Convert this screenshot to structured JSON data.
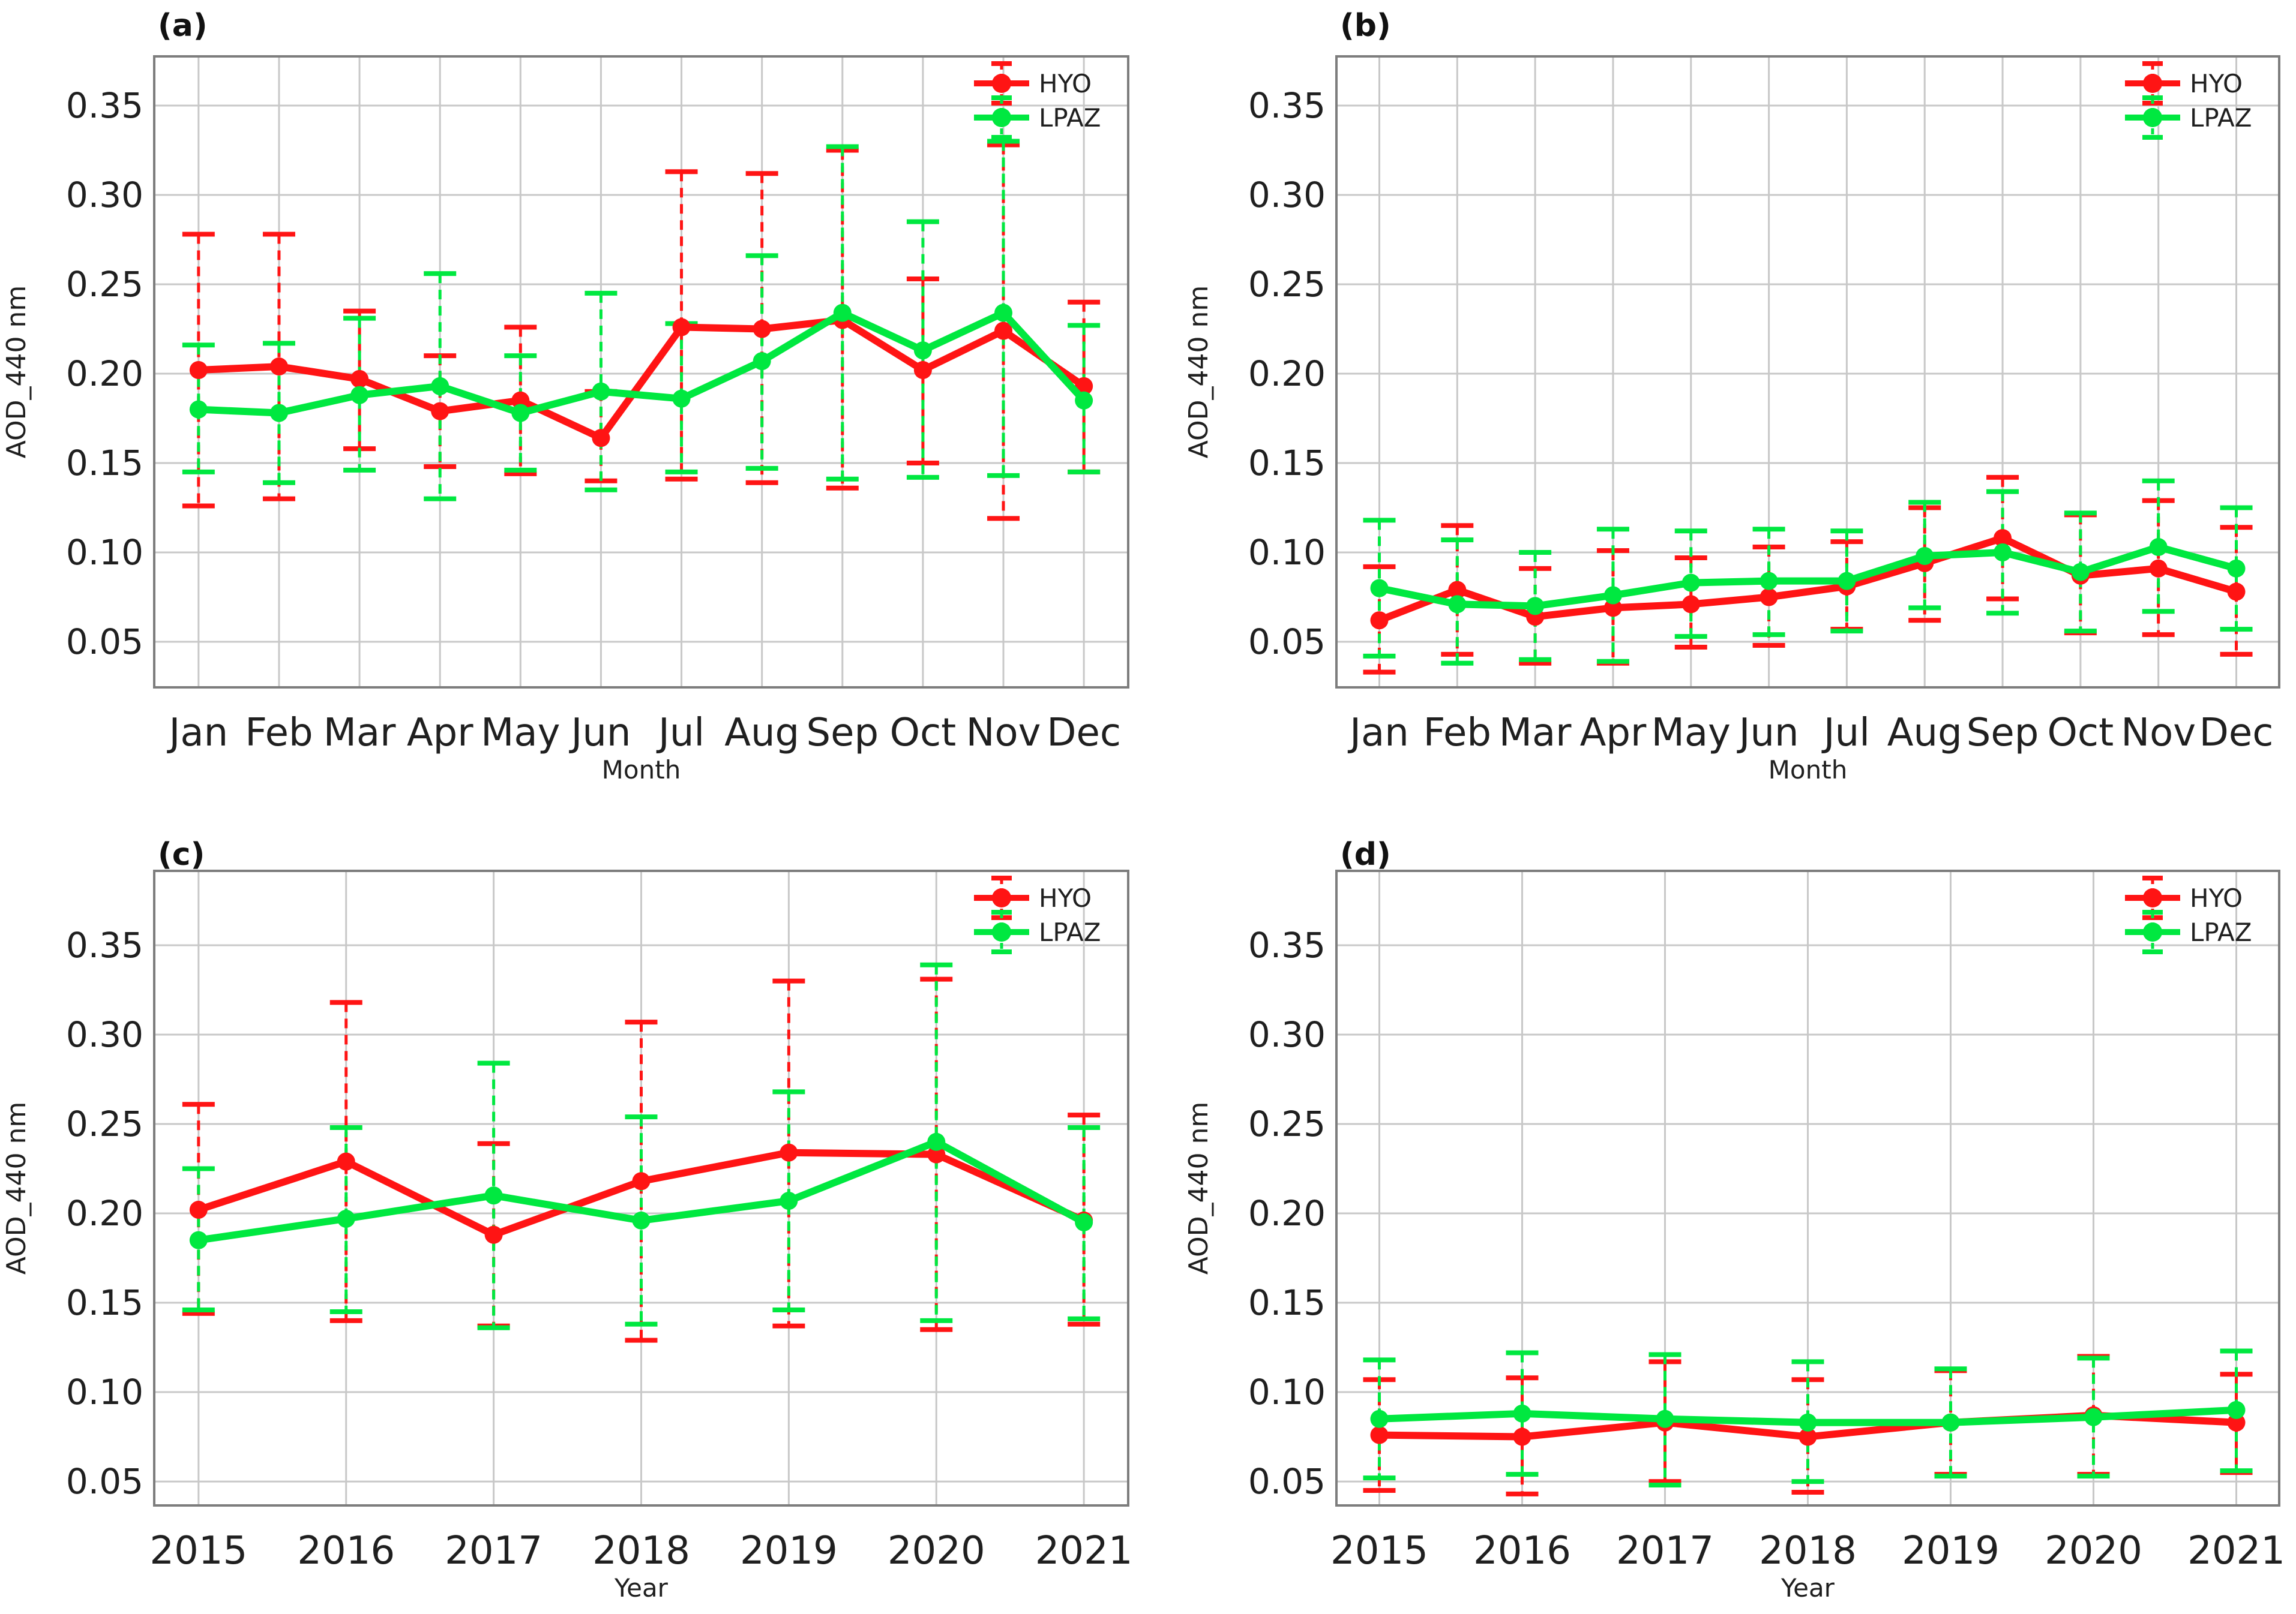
{
  "figure": {
    "background": "#ffffff",
    "grid_color": "#c8c8c8",
    "border_color": "#7d7d7d",
    "text_color": "#1f1f1f",
    "ylabel": "AOD_440 nm",
    "ytick_labels": [
      "0.35",
      "0.30",
      "0.25",
      "0.20",
      "0.15",
      "0.10",
      "0.05"
    ],
    "ytick_values": [
      0.35,
      0.3,
      0.25,
      0.2,
      0.15,
      0.1,
      0.05
    ],
    "legend": [
      {
        "name": "HYO",
        "color": "#ff1414"
      },
      {
        "name": "LPAZ",
        "color": "#00e840"
      }
    ]
  },
  "chart_data": [
    {
      "panel": "(a)",
      "type": "line",
      "xlabel": "Month",
      "ylabel": "AOD_440 nm",
      "grid": true,
      "legend_position": "top-right",
      "ylim": [
        0.0245,
        0.3775
      ],
      "yticks": [
        0.35,
        0.3,
        0.25,
        0.2,
        0.15,
        0.1,
        0.05
      ],
      "categories": [
        "Jan",
        "Feb",
        "Mar",
        "Apr",
        "May",
        "Jun",
        "Jul",
        "Aug",
        "Sep",
        "Oct",
        "Nov",
        "Dec"
      ],
      "series": [
        {
          "name": "HYO",
          "color": "#ff1414",
          "values": [
            0.202,
            0.204,
            0.197,
            0.179,
            0.185,
            0.164,
            0.226,
            0.225,
            0.23,
            0.202,
            0.224,
            0.193
          ],
          "err_lo": [
            0.126,
            0.13,
            0.158,
            0.148,
            0.144,
            0.14,
            0.141,
            0.139,
            0.136,
            0.15,
            0.119,
            0.145
          ],
          "err_hi": [
            0.278,
            0.278,
            0.235,
            0.21,
            0.226,
            0.19,
            0.313,
            0.312,
            0.325,
            0.253,
            0.328,
            0.24
          ]
        },
        {
          "name": "LPAZ",
          "color": "#00e840",
          "values": [
            0.18,
            0.178,
            0.188,
            0.193,
            0.178,
            0.19,
            0.186,
            0.207,
            0.234,
            0.213,
            0.234,
            0.185
          ],
          "err_lo": [
            0.145,
            0.139,
            0.146,
            0.13,
            0.146,
            0.135,
            0.145,
            0.147,
            0.141,
            0.142,
            0.143,
            0.145
          ],
          "err_hi": [
            0.216,
            0.217,
            0.231,
            0.256,
            0.21,
            0.245,
            0.228,
            0.266,
            0.327,
            0.285,
            0.33,
            0.227
          ]
        }
      ]
    },
    {
      "panel": "(b)",
      "type": "line",
      "xlabel": "Month",
      "ylabel": "AOD_440 nm",
      "grid": true,
      "legend_position": "top-right",
      "ylim": [
        0.0245,
        0.3775
      ],
      "yticks": [
        0.35,
        0.3,
        0.25,
        0.2,
        0.15,
        0.1,
        0.05
      ],
      "categories": [
        "Jan",
        "Feb",
        "Mar",
        "Apr",
        "May",
        "Jun",
        "Jul",
        "Aug",
        "Sep",
        "Oct",
        "Nov",
        "Dec"
      ],
      "series": [
        {
          "name": "HYO",
          "color": "#ff1414",
          "values": [
            0.062,
            0.079,
            0.064,
            0.069,
            0.071,
            0.075,
            0.081,
            0.094,
            0.108,
            0.087,
            0.091,
            0.078
          ],
          "err_lo": [
            0.033,
            0.043,
            0.038,
            0.038,
            0.047,
            0.048,
            0.057,
            0.062,
            0.074,
            0.055,
            0.054,
            0.043
          ],
          "err_hi": [
            0.092,
            0.115,
            0.091,
            0.101,
            0.097,
            0.103,
            0.106,
            0.125,
            0.142,
            0.121,
            0.129,
            0.114
          ]
        },
        {
          "name": "LPAZ",
          "color": "#00e840",
          "values": [
            0.08,
            0.071,
            0.07,
            0.076,
            0.083,
            0.084,
            0.084,
            0.098,
            0.1,
            0.089,
            0.103,
            0.091
          ],
          "err_lo": [
            0.042,
            0.038,
            0.04,
            0.039,
            0.053,
            0.054,
            0.056,
            0.069,
            0.066,
            0.056,
            0.067,
            0.057
          ],
          "err_hi": [
            0.118,
            0.107,
            0.1,
            0.113,
            0.112,
            0.113,
            0.112,
            0.128,
            0.134,
            0.122,
            0.14,
            0.125
          ]
        }
      ]
    },
    {
      "panel": "(c)",
      "type": "line",
      "xlabel": "Year",
      "ylabel": "AOD_440 nm",
      "grid": true,
      "legend_position": "top-right",
      "ylim": [
        0.0366,
        0.3916
      ],
      "yticks": [
        0.35,
        0.3,
        0.25,
        0.2,
        0.15,
        0.1,
        0.05
      ],
      "categories": [
        "2015",
        "2016",
        "2017",
        "2018",
        "2019",
        "2020",
        "2021"
      ],
      "series": [
        {
          "name": "HYO",
          "color": "#ff1414",
          "values": [
            0.202,
            0.229,
            0.188,
            0.218,
            0.234,
            0.233,
            0.196
          ],
          "err_lo": [
            0.144,
            0.14,
            0.137,
            0.129,
            0.137,
            0.135,
            0.138
          ],
          "err_hi": [
            0.261,
            0.318,
            0.239,
            0.307,
            0.33,
            0.331,
            0.255
          ]
        },
        {
          "name": "LPAZ",
          "color": "#00e840",
          "values": [
            0.185,
            0.197,
            0.21,
            0.196,
            0.207,
            0.24,
            0.195
          ],
          "err_lo": [
            0.146,
            0.145,
            0.136,
            0.138,
            0.146,
            0.14,
            0.141
          ],
          "err_hi": [
            0.225,
            0.248,
            0.284,
            0.254,
            0.268,
            0.339,
            0.248
          ]
        }
      ]
    },
    {
      "panel": "(d)",
      "type": "line",
      "xlabel": "Year",
      "ylabel": "AOD_440 nm",
      "grid": true,
      "legend_position": "top-right",
      "ylim": [
        0.0366,
        0.3916
      ],
      "yticks": [
        0.35,
        0.3,
        0.25,
        0.2,
        0.15,
        0.1,
        0.05
      ],
      "categories": [
        "2015",
        "2016",
        "2017",
        "2018",
        "2019",
        "2020",
        "2021"
      ],
      "series": [
        {
          "name": "HYO",
          "color": "#ff1414",
          "values": [
            0.076,
            0.075,
            0.083,
            0.075,
            0.083,
            0.087,
            0.083
          ],
          "err_lo": [
            0.045,
            0.043,
            0.05,
            0.044,
            0.054,
            0.054,
            0.055
          ],
          "err_hi": [
            0.107,
            0.108,
            0.117,
            0.107,
            0.112,
            0.12,
            0.11
          ]
        },
        {
          "name": "LPAZ",
          "color": "#00e840",
          "values": [
            0.085,
            0.088,
            0.085,
            0.083,
            0.083,
            0.086,
            0.09
          ],
          "err_lo": [
            0.052,
            0.054,
            0.048,
            0.05,
            0.053,
            0.053,
            0.056
          ],
          "err_hi": [
            0.118,
            0.122,
            0.121,
            0.117,
            0.113,
            0.119,
            0.123
          ]
        }
      ]
    }
  ]
}
